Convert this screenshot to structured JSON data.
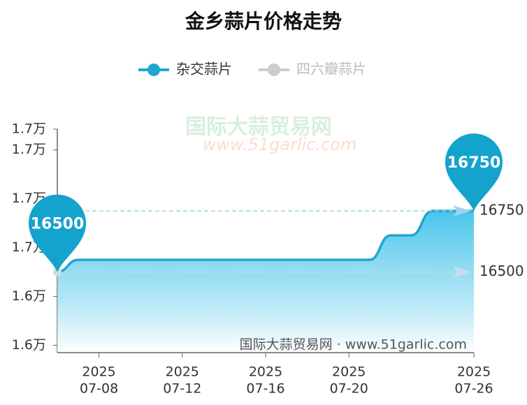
{
  "chart_data": {
    "type": "line",
    "title": "金乡蒜片价格走势",
    "legend": [
      {
        "name": "杂交蒜片",
        "color": "#1ea6cf"
      },
      {
        "name": "四六瓣蒜片",
        "color": "#cccccc"
      }
    ],
    "categories": [
      null,
      null,
      [
        "2025",
        "07-08"
      ],
      null,
      null,
      null,
      [
        "2025",
        "07-12"
      ],
      null,
      null,
      null,
      [
        "2025",
        "07-16"
      ],
      null,
      null,
      null,
      [
        "2025",
        "07-20"
      ],
      null,
      null,
      null,
      null,
      null,
      [
        "2025",
        "07-26"
      ]
    ],
    "series": [
      {
        "name": "杂交蒜片",
        "color": "#1ea6cf",
        "values": [
          16500,
          16550,
          16550,
          16550,
          16550,
          16550,
          16550,
          16550,
          16550,
          16550,
          16550,
          16550,
          16550,
          16550,
          16550,
          16550,
          16650,
          16650,
          16750,
          16750,
          16750
        ]
      }
    ],
    "ylim": [
      16170,
      17085
    ],
    "yticks": [
      {
        "value": 16200,
        "label": "1.6万"
      },
      {
        "value": 16400,
        "label": "1.6万"
      },
      {
        "value": 16600,
        "label": "1.7万"
      },
      {
        "value": 16800,
        "label": "1.7万"
      },
      {
        "value": 17000,
        "label": "1.7万"
      },
      {
        "value": 17085,
        "label": "1.7万"
      }
    ],
    "mark_points": [
      {
        "index": 0,
        "value": 16500
      },
      {
        "index": 20,
        "value": 16750
      }
    ],
    "mark_lines": [
      16750,
      16500
    ],
    "watermark": {
      "name": "国际大蒜贸易网",
      "url": "www.51garlic.com",
      "footer": "国际大蒜贸易网 · www.51garlic.com"
    }
  }
}
